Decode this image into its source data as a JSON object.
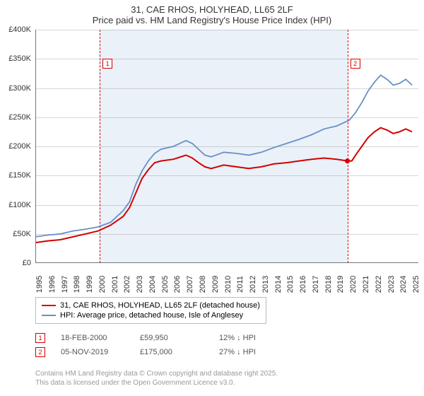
{
  "title_line1": "31, CAE RHOS, HOLYHEAD, LL65 2LF",
  "title_line2": "Price paid vs. HM Land Registry's House Price Index (HPI)",
  "chart": {
    "type": "line",
    "xlim": [
      1995,
      2025.5
    ],
    "ylim": [
      0,
      400000
    ],
    "ytick_step": 50000,
    "y_labels": [
      "£0",
      "£50K",
      "£100K",
      "£150K",
      "£200K",
      "£250K",
      "£300K",
      "£350K",
      "£400K"
    ],
    "x_ticks": [
      1995,
      1996,
      1997,
      1998,
      1999,
      2000,
      2001,
      2002,
      2003,
      2004,
      2005,
      2006,
      2007,
      2008,
      2009,
      2010,
      2011,
      2012,
      2013,
      2014,
      2015,
      2016,
      2017,
      2018,
      2019,
      2020,
      2021,
      2022,
      2023,
      2024,
      2025
    ],
    "grid_color": "#999999",
    "background_color": "#ffffff",
    "shaded_band": {
      "x_start": 2000.13,
      "x_end": 2019.85,
      "color": "#eaf1f9"
    },
    "series": [
      {
        "name": "31, CAE RHOS, HOLYHEAD, LL65 2LF (detached house)",
        "color": "#d40000",
        "line_width": 2,
        "data": [
          [
            1995,
            35000
          ],
          [
            1996,
            38000
          ],
          [
            1997,
            40000
          ],
          [
            1998,
            45000
          ],
          [
            1999,
            50000
          ],
          [
            2000,
            55000
          ],
          [
            2000.5,
            60000
          ],
          [
            2001,
            65000
          ],
          [
            2002,
            80000
          ],
          [
            2002.5,
            95000
          ],
          [
            2003,
            120000
          ],
          [
            2003.5,
            145000
          ],
          [
            2004,
            160000
          ],
          [
            2004.5,
            172000
          ],
          [
            2005,
            175000
          ],
          [
            2006,
            178000
          ],
          [
            2007,
            185000
          ],
          [
            2007.5,
            180000
          ],
          [
            2008,
            172000
          ],
          [
            2008.5,
            165000
          ],
          [
            2009,
            162000
          ],
          [
            2010,
            168000
          ],
          [
            2011,
            165000
          ],
          [
            2012,
            162000
          ],
          [
            2013,
            165000
          ],
          [
            2014,
            170000
          ],
          [
            2015,
            172000
          ],
          [
            2016,
            175000
          ],
          [
            2017,
            178000
          ],
          [
            2018,
            180000
          ],
          [
            2019,
            178000
          ],
          [
            2019.85,
            175000
          ],
          [
            2020.2,
            175000
          ],
          [
            2020.5,
            185000
          ],
          [
            2021,
            200000
          ],
          [
            2021.5,
            215000
          ],
          [
            2022,
            225000
          ],
          [
            2022.5,
            232000
          ],
          [
            2023,
            228000
          ],
          [
            2023.5,
            222000
          ],
          [
            2024,
            225000
          ],
          [
            2024.5,
            230000
          ],
          [
            2025,
            225000
          ]
        ]
      },
      {
        "name": "HPI: Average price, detached house, Isle of Anglesey",
        "color": "#6a8fc5",
        "line_width": 1.8,
        "data": [
          [
            1995,
            45000
          ],
          [
            1996,
            48000
          ],
          [
            1997,
            50000
          ],
          [
            1998,
            55000
          ],
          [
            1999,
            58000
          ],
          [
            2000,
            62000
          ],
          [
            2001,
            70000
          ],
          [
            2002,
            90000
          ],
          [
            2002.5,
            105000
          ],
          [
            2003,
            135000
          ],
          [
            2003.5,
            158000
          ],
          [
            2004,
            175000
          ],
          [
            2004.5,
            188000
          ],
          [
            2005,
            195000
          ],
          [
            2006,
            200000
          ],
          [
            2007,
            210000
          ],
          [
            2007.5,
            205000
          ],
          [
            2008,
            195000
          ],
          [
            2008.5,
            185000
          ],
          [
            2009,
            182000
          ],
          [
            2010,
            190000
          ],
          [
            2011,
            188000
          ],
          [
            2012,
            185000
          ],
          [
            2013,
            190000
          ],
          [
            2014,
            198000
          ],
          [
            2015,
            205000
          ],
          [
            2016,
            212000
          ],
          [
            2017,
            220000
          ],
          [
            2018,
            230000
          ],
          [
            2019,
            235000
          ],
          [
            2020,
            245000
          ],
          [
            2020.5,
            258000
          ],
          [
            2021,
            275000
          ],
          [
            2021.5,
            295000
          ],
          [
            2022,
            310000
          ],
          [
            2022.5,
            322000
          ],
          [
            2023,
            315000
          ],
          [
            2023.5,
            305000
          ],
          [
            2024,
            308000
          ],
          [
            2024.5,
            315000
          ],
          [
            2025,
            305000
          ]
        ]
      }
    ],
    "markers": [
      {
        "label": "1",
        "x": 2000.13,
        "color": "#d40000",
        "box_top": 65000
      },
      {
        "label": "2",
        "x": 2019.85,
        "color": "#d40000",
        "box_top": 65000,
        "dot_y": 175000
      }
    ]
  },
  "legend": [
    {
      "color": "#d40000",
      "text": "31, CAE RHOS, HOLYHEAD, LL65 2LF (detached house)"
    },
    {
      "color": "#6a8fc5",
      "text": "HPI: Average price, detached house, Isle of Anglesey"
    }
  ],
  "info_rows": [
    {
      "marker": "1",
      "marker_color": "#d40000",
      "date": "18-FEB-2000",
      "price": "£59,950",
      "delta": "12% ↓ HPI"
    },
    {
      "marker": "2",
      "marker_color": "#d40000",
      "date": "05-NOV-2019",
      "price": "£175,000",
      "delta": "27% ↓ HPI"
    }
  ],
  "footer_line1": "Contains HM Land Registry data © Crown copyright and database right 2025.",
  "footer_line2": "This data is licensed under the Open Government Licence v3.0."
}
